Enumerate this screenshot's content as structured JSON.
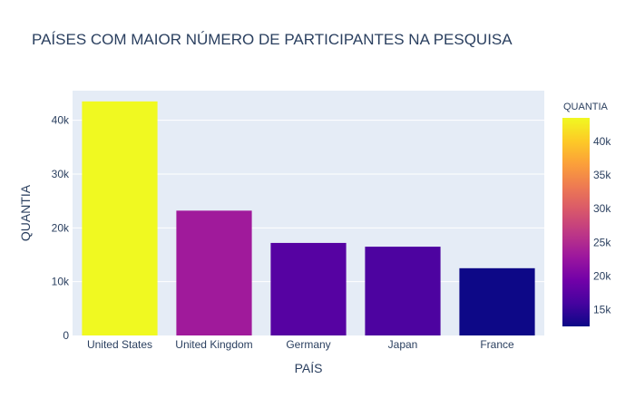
{
  "chart_data": {
    "type": "bar",
    "title": "PAÍSES COM MAIOR NÚMERO DE PARTICIPANTES NA PESQUISA",
    "xlabel": "PAÍS",
    "ylabel": "QUANTIA",
    "categories": [
      "United States",
      "United Kingdom",
      "Germany",
      "Japan",
      "France"
    ],
    "values": [
      43500,
      23200,
      17200,
      16500,
      12500
    ],
    "ylim": [
      0,
      45500
    ],
    "y_ticks": [
      0,
      10000,
      20000,
      30000,
      40000
    ],
    "y_tick_labels": [
      "0",
      "10k",
      "20k",
      "30k",
      "40k"
    ],
    "grid": true,
    "colorbar": {
      "title": "QUANTIA",
      "range": [
        12500,
        43500
      ],
      "ticks": [
        15000,
        20000,
        25000,
        30000,
        35000,
        40000
      ],
      "tick_labels": [
        "15k",
        "20k",
        "25k",
        "30k",
        "35k",
        "40k"
      ]
    },
    "colors": {
      "plot_bg": "#e5ecf6",
      "gridline": "#ffffff",
      "text": "#2a3f5f",
      "colorscale": [
        "#0d0887",
        "#46039f",
        "#7201a8",
        "#9c179e",
        "#bd3786",
        "#d8576b",
        "#ed7953",
        "#fb9f3a",
        "#fdca26",
        "#f0f921"
      ]
    }
  }
}
